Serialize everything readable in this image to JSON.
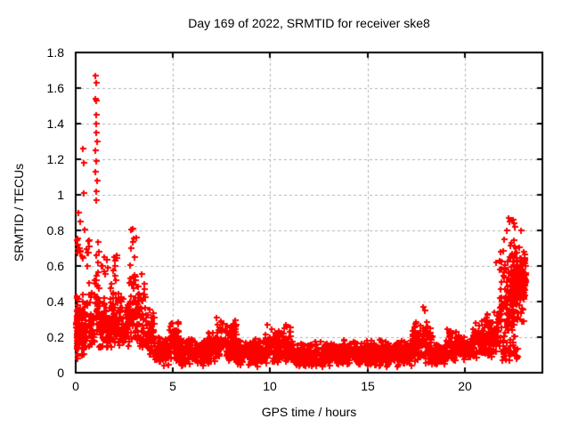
{
  "chart_data": {
    "type": "scatter",
    "title": "Day 169 of 2022, SRMTID for receiver ske8",
    "xlabel": "GPS time / hours",
    "ylabel": "SRMTID / TECUs",
    "xlim": [
      0,
      24
    ],
    "ylim": [
      0,
      1.8
    ],
    "xticks": {
      "values": [
        0,
        5,
        10,
        15,
        20
      ],
      "labels": [
        "0",
        "5",
        "10",
        "15",
        "20"
      ]
    },
    "yticks": {
      "values": [
        0,
        0.2,
        0.4,
        0.6,
        0.8,
        1.0,
        1.2,
        1.4,
        1.6,
        1.8
      ],
      "labels": [
        "0",
        "0.2",
        "0.4",
        "0.6",
        "0.8",
        "1",
        "1.2",
        "1.4",
        "1.6",
        "1.8"
      ]
    },
    "grid": {
      "show": true,
      "color": "#b0b0b0",
      "dash": [
        3,
        3
      ]
    },
    "axis_color": "#000000",
    "text_color": "#000000",
    "legend": "none",
    "series": [
      {
        "name": "SRMTID",
        "marker": "plus",
        "color": "#ff0000",
        "marker_size": 7,
        "marker_thickness": 2,
        "point_cloud": {
          "seed": 16909,
          "segments": [
            [
              0.0,
              0.12,
              26,
              0.1,
              0.45,
              1.2
            ],
            [
              0.03,
              0.45,
              70,
              0.08,
              0.5,
              1.4
            ],
            [
              0.05,
              0.4,
              10,
              0.5,
              0.8,
              1.0
            ],
            [
              0.45,
              0.75,
              26,
              0.12,
              0.55,
              1.3
            ],
            [
              0.45,
              0.7,
              8,
              0.55,
              0.93,
              1.0
            ],
            [
              0.75,
              0.95,
              22,
              0.12,
              0.5,
              1.3
            ],
            [
              0.95,
              1.2,
              30,
              0.15,
              0.75,
              1.2
            ],
            [
              1.2,
              1.7,
              70,
              0.13,
              0.48,
              1.4
            ],
            [
              1.25,
              1.65,
              8,
              0.48,
              0.72,
              1.0
            ],
            [
              1.7,
              2.3,
              90,
              0.14,
              0.55,
              1.4
            ],
            [
              1.8,
              2.2,
              6,
              0.55,
              0.68,
              1.0
            ],
            [
              2.3,
              2.75,
              60,
              0.13,
              0.45,
              1.3
            ],
            [
              2.75,
              3.15,
              45,
              0.18,
              0.88,
              1.5
            ],
            [
              3.15,
              3.6,
              55,
              0.13,
              0.6,
              1.5
            ],
            [
              3.6,
              4.05,
              55,
              0.1,
              0.38,
              1.3
            ],
            [
              4.05,
              4.8,
              85,
              0.04,
              0.22,
              1.1
            ],
            [
              4.8,
              5.3,
              60,
              0.06,
              0.33,
              1.3
            ],
            [
              5.3,
              6.6,
              150,
              0.03,
              0.2,
              1.1
            ],
            [
              6.6,
              7.2,
              70,
              0.05,
              0.24,
              1.1
            ],
            [
              7.2,
              8.3,
              130,
              0.06,
              0.32,
              1.3
            ],
            [
              8.3,
              9.7,
              160,
              0.03,
              0.2,
              1.1
            ],
            [
              9.7,
              11.2,
              170,
              0.05,
              0.3,
              1.3
            ],
            [
              11.2,
              13.0,
              200,
              0.03,
              0.18,
              1.1
            ],
            [
              13.0,
              14.5,
              170,
              0.04,
              0.2,
              1.2
            ],
            [
              14.5,
              17.3,
              310,
              0.03,
              0.19,
              1.1
            ],
            [
              17.3,
              18.3,
              115,
              0.05,
              0.32,
              1.3
            ],
            [
              18.3,
              19.0,
              80,
              0.04,
              0.18,
              1.1
            ],
            [
              19.0,
              19.7,
              85,
              0.06,
              0.27,
              1.2
            ],
            [
              19.7,
              20.4,
              80,
              0.06,
              0.22,
              1.1
            ],
            [
              20.4,
              21.0,
              70,
              0.08,
              0.3,
              1.2
            ],
            [
              21.0,
              21.8,
              105,
              0.08,
              0.36,
              1.2
            ],
            [
              21.8,
              22.6,
              120,
              0.15,
              0.8,
              1.5
            ],
            [
              21.9,
              22.8,
              30,
              0.05,
              0.18,
              1.0
            ],
            [
              22.4,
              23.1,
              160,
              0.25,
              0.72,
              0.9
            ],
            [
              23.0,
              23.15,
              18,
              0.45,
              0.68,
              1.0
            ]
          ],
          "outliers": [
            [
              1.02,
              1.67
            ],
            [
              1.06,
              1.63
            ],
            [
              1.03,
              1.54
            ],
            [
              1.07,
              1.53
            ],
            [
              1.05,
              1.45
            ],
            [
              1.06,
              1.4
            ],
            [
              1.04,
              1.35
            ],
            [
              1.08,
              1.3
            ],
            [
              1.02,
              1.25
            ],
            [
              1.06,
              1.19
            ],
            [
              1.03,
              1.13
            ],
            [
              1.09,
              1.08
            ],
            [
              1.05,
              1.02
            ],
            [
              1.04,
              0.97
            ],
            [
              0.38,
              1.26
            ],
            [
              0.4,
              1.18
            ],
            [
              0.42,
              1.01
            ],
            [
              0.15,
              0.9
            ],
            [
              0.22,
              0.85
            ],
            [
              17.85,
              0.37
            ],
            [
              17.95,
              0.35
            ],
            [
              22.25,
              0.87
            ],
            [
              22.32,
              0.85
            ],
            [
              22.47,
              0.86
            ],
            [
              22.52,
              0.84
            ],
            [
              22.18,
              0.8
            ],
            [
              22.6,
              0.82
            ],
            [
              22.9,
              0.8
            ],
            [
              21.6,
              0.62
            ],
            [
              22.05,
              0.75
            ]
          ]
        }
      }
    ]
  }
}
